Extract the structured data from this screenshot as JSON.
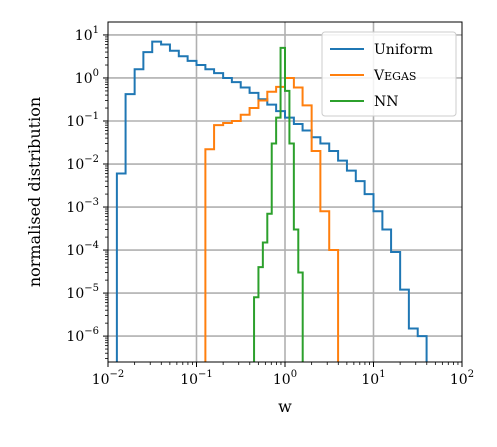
{
  "chart_data": {
    "type": "line",
    "drawstyle": "steps",
    "xscale": "log",
    "yscale": "log",
    "xlabel": "w",
    "ylabel": "normalised distribution",
    "xlim": [
      0.01,
      100
    ],
    "ylim": [
      2.5e-07,
      20
    ],
    "grid": true,
    "legend": "top-right",
    "x_ticks": [
      {
        "base": "10",
        "exp": "−2"
      },
      {
        "base": "10",
        "exp": "−1"
      },
      {
        "base": "10",
        "exp": "0"
      },
      {
        "base": "10",
        "exp": "1"
      },
      {
        "base": "10",
        "exp": "2"
      }
    ],
    "y_ticks": [
      {
        "base": "10",
        "exp": "−6"
      },
      {
        "base": "10",
        "exp": "−5"
      },
      {
        "base": "10",
        "exp": "−4"
      },
      {
        "base": "10",
        "exp": "−3"
      },
      {
        "base": "10",
        "exp": "−2"
      },
      {
        "base": "10",
        "exp": "−1"
      },
      {
        "base": "10",
        "exp": "0"
      },
      {
        "base": "10",
        "exp": "1"
      }
    ],
    "series": [
      {
        "name": "Uniform",
        "color": "#1f77b4",
        "edges": [
          0.0126,
          0.0158,
          0.02,
          0.0251,
          0.0316,
          0.0398,
          0.0501,
          0.0631,
          0.0794,
          0.1,
          0.126,
          0.158,
          0.2,
          0.251,
          0.316,
          0.398,
          0.501,
          0.631,
          0.794,
          1.0,
          1.26,
          1.58,
          2.0,
          2.51,
          3.16,
          3.98,
          5.01,
          6.31,
          7.94,
          10.0,
          12.6,
          15.8,
          20.0,
          25.1,
          31.6,
          39.8
        ],
        "values": [
          0.006,
          0.42,
          1.6,
          4.0,
          7.0,
          6.0,
          4.3,
          3.2,
          2.5,
          2.0,
          1.6,
          1.3,
          1.0,
          0.8,
          0.6,
          0.45,
          0.32,
          0.24,
          0.17,
          0.12,
          0.085,
          0.06,
          0.042,
          0.03,
          0.02,
          0.012,
          0.007,
          0.004,
          0.002,
          0.0008,
          0.0003,
          9e-05,
          1.2e-05,
          1.5e-06,
          1e-06
        ]
      },
      {
        "name": "Vegas",
        "color": "#ff7f0e",
        "edges": [
          0.126,
          0.158,
          0.2,
          0.251,
          0.316,
          0.398,
          0.501,
          0.631,
          0.794,
          1.0,
          1.26,
          1.58,
          2.0,
          2.51,
          3.16,
          3.98
        ],
        "values": [
          0.022,
          0.08,
          0.09,
          0.1,
          0.14,
          0.2,
          0.3,
          0.48,
          0.62,
          1.0,
          0.6,
          0.23,
          0.02,
          0.0008,
          0.0001
        ]
      },
      {
        "name": "NN",
        "color": "#2ca02c",
        "edges": [
          0.447,
          0.501,
          0.562,
          0.631,
          0.708,
          0.794,
          0.891,
          1.0,
          1.122,
          1.259,
          1.413,
          1.585
        ],
        "values": [
          8e-06,
          4e-05,
          0.00015,
          0.0007,
          0.03,
          0.12,
          5.0,
          0.5,
          0.03,
          0.0003,
          3e-05
        ]
      }
    ]
  }
}
